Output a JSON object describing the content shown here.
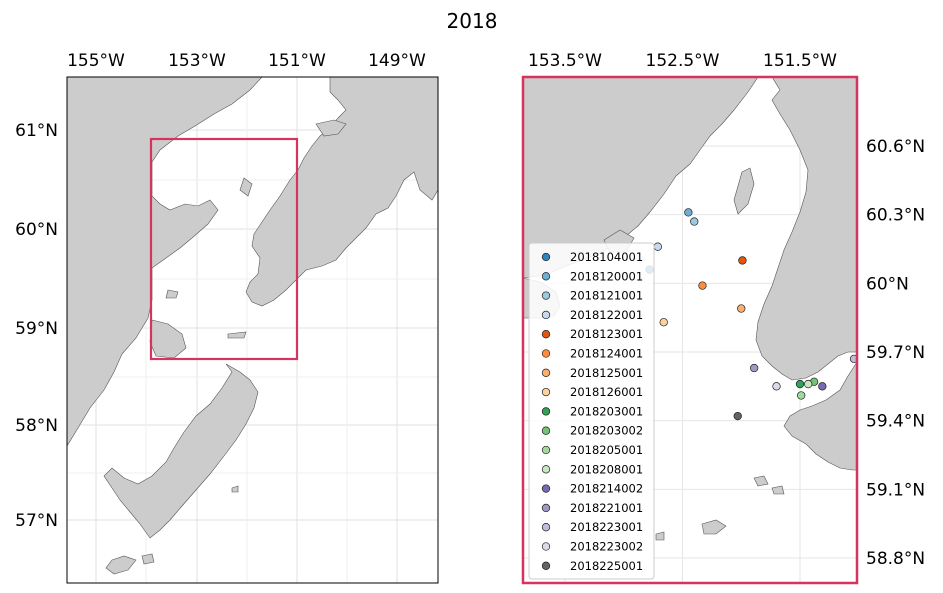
{
  "title": "2018",
  "colors": {
    "land": "#cccccc",
    "coast": "#555555",
    "box": "#d6335f",
    "grid": "#dddddd"
  },
  "left_map": {
    "lon_labels": [
      "155°W",
      "153°W",
      "151°W",
      "149°W"
    ],
    "lat_labels": [
      "61°N",
      "60°N",
      "59°N",
      "58°N",
      "57°N"
    ]
  },
  "right_map": {
    "lon_labels": [
      "153.5°W",
      "152.5°W",
      "151.5°W"
    ],
    "lat_labels": [
      "60.6°N",
      "60.3°N",
      "60°N",
      "59.7°N",
      "59.4°N",
      "59.1°N",
      "58.8°N"
    ]
  },
  "legend": [
    {
      "label": "2018104001",
      "color": "#3182bd"
    },
    {
      "label": "2018120001",
      "color": "#6baed6"
    },
    {
      "label": "2018121001",
      "color": "#9ecae1"
    },
    {
      "label": "2018122001",
      "color": "#c6dbef"
    },
    {
      "label": "2018123001",
      "color": "#e6550d"
    },
    {
      "label": "2018124001",
      "color": "#fd8d3c"
    },
    {
      "label": "2018125001",
      "color": "#fdae6b"
    },
    {
      "label": "2018126001",
      "color": "#fdd0a2"
    },
    {
      "label": "2018203001",
      "color": "#31a354"
    },
    {
      "label": "2018203002",
      "color": "#74c476"
    },
    {
      "label": "2018205001",
      "color": "#a1d99b"
    },
    {
      "label": "2018208001",
      "color": "#c7e9c0"
    },
    {
      "label": "2018214002",
      "color": "#756bb1"
    },
    {
      "label": "2018221001",
      "color": "#9e9ac8"
    },
    {
      "label": "2018223001",
      "color": "#bcbddc"
    },
    {
      "label": "2018223002",
      "color": "#dadaeb"
    },
    {
      "label": "2018225001",
      "color": "#636363"
    }
  ],
  "stations": [
    {
      "id": "2018104001",
      "lon": -152.78,
      "lat": 60.06
    },
    {
      "id": "2018120001",
      "lon": -152.45,
      "lat": 60.31
    },
    {
      "id": "2018121001",
      "lon": -152.4,
      "lat": 60.27
    },
    {
      "id": "2018122001",
      "lon": -152.71,
      "lat": 60.16
    },
    {
      "id": "2018123001",
      "lon": -151.99,
      "lat": 60.1
    },
    {
      "id": "2018124001",
      "lon": -152.33,
      "lat": 59.99
    },
    {
      "id": "2018125001",
      "lon": -152.0,
      "lat": 59.89
    },
    {
      "id": "2018126001",
      "lon": -152.66,
      "lat": 59.83
    },
    {
      "id": "2018203001",
      "lon": -151.5,
      "lat": 59.56
    },
    {
      "id": "2018203002",
      "lon": -151.38,
      "lat": 59.57
    },
    {
      "id": "2018205001",
      "lon": -151.49,
      "lat": 59.51
    },
    {
      "id": "2018208001",
      "lon": -151.43,
      "lat": 59.56
    },
    {
      "id": "2018214002",
      "lon": -151.31,
      "lat": 59.55
    },
    {
      "id": "2018221001",
      "lon": -151.89,
      "lat": 59.63
    },
    {
      "id": "2018223001",
      "lon": -151.04,
      "lat": 59.67
    },
    {
      "id": "2018223002",
      "lon": -151.7,
      "lat": 59.55
    },
    {
      "id": "2018225001",
      "lon": -152.03,
      "lat": 59.42
    }
  ]
}
